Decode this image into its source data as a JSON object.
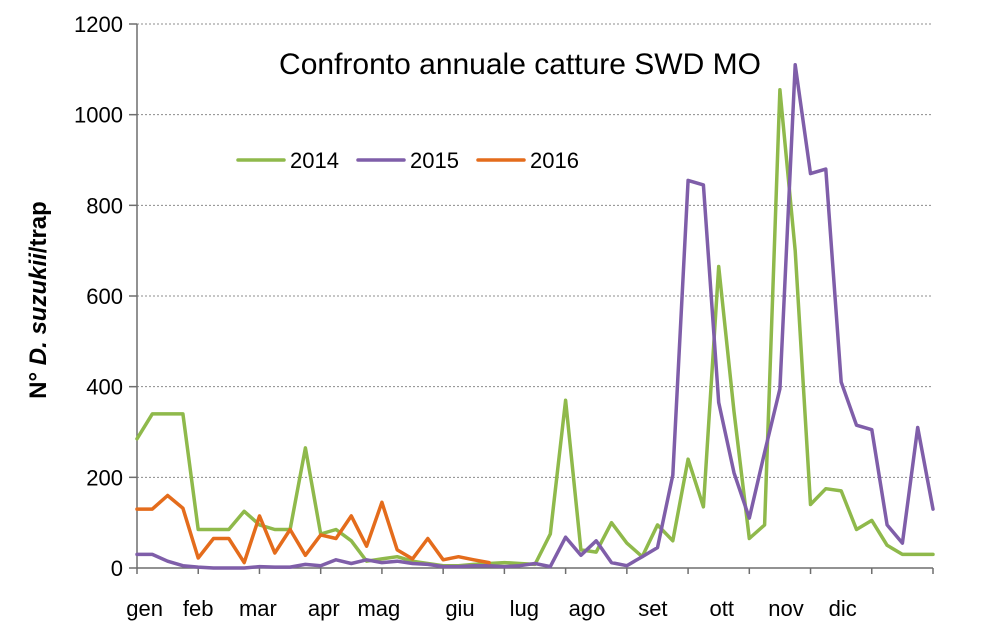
{
  "chart_data": {
    "type": "line",
    "title": "Confronto annuale catture SWD MO",
    "ylabel_prefix": "N° ",
    "ylabel_italic": "D. suzukii",
    "ylabel_suffix": "/trap",
    "xlabel": "",
    "ylim": [
      0,
      1200
    ],
    "yticks": [
      0,
      200,
      400,
      600,
      800,
      1000,
      1200
    ],
    "xlim": [
      0,
      52
    ],
    "month_labels": [
      "gen",
      "feb",
      "mar",
      "apr",
      "mag",
      "giu",
      "lug",
      "ago",
      "set",
      "ott",
      "nov",
      "dic"
    ],
    "month_positions": [
      0.5,
      4,
      7.9,
      12.2,
      15.8,
      21.1,
      25.3,
      29.4,
      33.7,
      38.2,
      42.4,
      46.1
    ],
    "grid": true,
    "legend_position": "upper-left",
    "series": [
      {
        "name": "2014",
        "color": "#8fb94b",
        "points": [
          [
            0,
            285
          ],
          [
            1,
            340
          ],
          [
            2,
            340
          ],
          [
            3,
            340
          ],
          [
            4,
            85
          ],
          [
            5,
            85
          ],
          [
            6,
            85
          ],
          [
            7,
            125
          ],
          [
            8,
            95
          ],
          [
            9,
            85
          ],
          [
            10,
            85
          ],
          [
            11,
            265
          ],
          [
            12,
            75
          ],
          [
            13,
            85
          ],
          [
            14,
            60
          ],
          [
            15,
            15
          ],
          [
            16,
            20
          ],
          [
            17,
            25
          ],
          [
            18,
            15
          ],
          [
            19,
            10
          ],
          [
            20,
            5
          ],
          [
            21,
            5
          ],
          [
            22,
            8
          ],
          [
            23,
            10
          ],
          [
            24,
            12
          ],
          [
            25,
            10
          ],
          [
            26,
            8
          ],
          [
            27,
            75
          ],
          [
            28,
            370
          ],
          [
            29,
            40
          ],
          [
            30,
            35
          ],
          [
            31,
            100
          ],
          [
            32,
            55
          ],
          [
            33,
            25
          ],
          [
            34,
            95
          ],
          [
            35,
            60
          ],
          [
            36,
            240
          ],
          [
            37,
            135
          ],
          [
            38,
            665
          ],
          [
            39,
            345
          ],
          [
            40,
            65
          ],
          [
            41,
            95
          ],
          [
            42,
            1055
          ],
          [
            43,
            700
          ],
          [
            44,
            140
          ],
          [
            45,
            175
          ],
          [
            46,
            170
          ],
          [
            47,
            85
          ],
          [
            48,
            105
          ],
          [
            49,
            50
          ],
          [
            50,
            30
          ],
          [
            51,
            30
          ],
          [
            52,
            30
          ]
        ]
      },
      {
        "name": "2015",
        "color": "#7f5ea9",
        "points": [
          [
            0,
            30
          ],
          [
            1,
            30
          ],
          [
            2,
            15
          ],
          [
            3,
            5
          ],
          [
            4,
            2
          ],
          [
            5,
            0
          ],
          [
            6,
            0
          ],
          [
            7,
            0
          ],
          [
            8,
            3
          ],
          [
            9,
            2
          ],
          [
            10,
            2
          ],
          [
            11,
            8
          ],
          [
            12,
            5
          ],
          [
            13,
            18
          ],
          [
            14,
            10
          ],
          [
            15,
            18
          ],
          [
            16,
            12
          ],
          [
            17,
            15
          ],
          [
            18,
            10
          ],
          [
            19,
            8
          ],
          [
            20,
            3
          ],
          [
            21,
            3
          ],
          [
            22,
            5
          ],
          [
            23,
            5
          ],
          [
            24,
            3
          ],
          [
            25,
            5
          ],
          [
            26,
            10
          ],
          [
            27,
            3
          ],
          [
            28,
            68
          ],
          [
            29,
            28
          ],
          [
            30,
            60
          ],
          [
            31,
            12
          ],
          [
            32,
            5
          ],
          [
            33,
            25
          ],
          [
            34,
            45
          ],
          [
            35,
            205
          ],
          [
            36,
            855
          ],
          [
            37,
            845
          ],
          [
            38,
            365
          ],
          [
            39,
            210
          ],
          [
            40,
            110
          ],
          [
            41,
            255
          ],
          [
            42,
            395
          ],
          [
            43,
            1110
          ],
          [
            44,
            870
          ],
          [
            45,
            880
          ],
          [
            46,
            410
          ],
          [
            47,
            315
          ],
          [
            48,
            305
          ],
          [
            49,
            95
          ],
          [
            50,
            55
          ],
          [
            51,
            310
          ],
          [
            52,
            130
          ]
        ]
      },
      {
        "name": "2016",
        "color": "#e46c1c",
        "points": [
          [
            0,
            130
          ],
          [
            1,
            130
          ],
          [
            2,
            160
          ],
          [
            3,
            132
          ],
          [
            4,
            22
          ],
          [
            5,
            65
          ],
          [
            6,
            65
          ],
          [
            7,
            12
          ],
          [
            8,
            115
          ],
          [
            9,
            33
          ],
          [
            10,
            85
          ],
          [
            11,
            28
          ],
          [
            12,
            73
          ],
          [
            13,
            65
          ],
          [
            14,
            115
          ],
          [
            15,
            48
          ],
          [
            16,
            145
          ],
          [
            17,
            40
          ],
          [
            18,
            20
          ],
          [
            19,
            65
          ],
          [
            20,
            18
          ],
          [
            21,
            25
          ],
          [
            22,
            18
          ],
          [
            23,
            12
          ]
        ]
      }
    ]
  }
}
